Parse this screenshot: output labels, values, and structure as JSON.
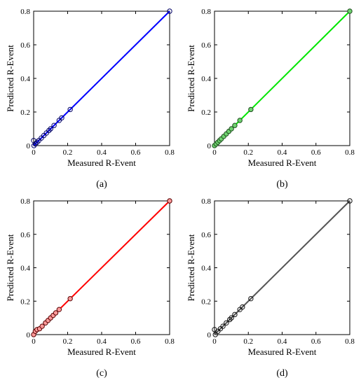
{
  "chart_data": [
    {
      "type": "scatter",
      "panel_label": "(a)",
      "xlabel": "Measured R-Event",
      "ylabel": "Predicted R-Event",
      "xlim": [
        0,
        0.8
      ],
      "ylim": [
        0,
        0.8
      ],
      "x_ticks": [
        "0",
        "0.2",
        "0.4",
        "0.6",
        "0.8"
      ],
      "y_ticks": [
        "0",
        "0.2",
        "0.4",
        "0.6",
        "0.8"
      ],
      "line_color": "#0000ff",
      "marker_color": "#000066",
      "marker_fill": "none",
      "grid": false,
      "fit_line": {
        "x": [
          0,
          0.8
        ],
        "y": [
          0,
          0.8
        ]
      },
      "points": {
        "x": [
          0.0,
          0.002,
          0.01,
          0.02,
          0.03,
          0.045,
          0.06,
          0.075,
          0.09,
          0.1,
          0.12,
          0.15,
          0.165,
          0.215,
          0.8
        ],
        "y": [
          0.03,
          0.0,
          0.01,
          0.02,
          0.03,
          0.045,
          0.06,
          0.075,
          0.09,
          0.1,
          0.12,
          0.15,
          0.165,
          0.215,
          0.8
        ]
      }
    },
    {
      "type": "scatter",
      "panel_label": "(b)",
      "xlabel": "Measured R-Event",
      "ylabel": "Predicted R-Event",
      "xlim": [
        0,
        0.8
      ],
      "ylim": [
        0,
        0.8
      ],
      "x_ticks": [
        "0",
        "0.2",
        "0.4",
        "0.6",
        "0.8"
      ],
      "y_ticks": [
        "0",
        "0.2",
        "0.4",
        "0.6",
        "0.8"
      ],
      "line_color": "#00e600",
      "marker_color": "#1f4d1f",
      "marker_fill": "#6fd26f",
      "grid": false,
      "fit_line": {
        "x": [
          0,
          0.8
        ],
        "y": [
          0,
          0.8
        ]
      },
      "points": {
        "x": [
          0.0,
          0.01,
          0.02,
          0.03,
          0.04,
          0.055,
          0.07,
          0.085,
          0.1,
          0.12,
          0.15,
          0.215,
          0.8
        ],
        "y": [
          0.0,
          0.01,
          0.02,
          0.03,
          0.04,
          0.055,
          0.07,
          0.085,
          0.1,
          0.12,
          0.15,
          0.215,
          0.8
        ]
      }
    },
    {
      "type": "scatter",
      "panel_label": "(c)",
      "xlabel": "Measured R-Event",
      "ylabel": "Predicted R-Event",
      "xlim": [
        0,
        0.8
      ],
      "ylim": [
        0,
        0.8
      ],
      "x_ticks": [
        "0",
        "0.2",
        "0.4",
        "0.6",
        "0.8"
      ],
      "y_ticks": [
        "0",
        "0.2",
        "0.4",
        "0.6",
        "0.8"
      ],
      "line_color": "#ff0000",
      "marker_color": "#550000",
      "marker_fill": "#ff9a9a",
      "grid": false,
      "fit_line": {
        "x": [
          0,
          0.8
        ],
        "y": [
          0,
          0.8
        ]
      },
      "points": {
        "x": [
          0.0,
          0.01,
          0.02,
          0.035,
          0.05,
          0.07,
          0.085,
          0.1,
          0.115,
          0.13,
          0.15,
          0.215,
          0.8
        ],
        "y": [
          0.0,
          0.02,
          0.03,
          0.035,
          0.05,
          0.07,
          0.085,
          0.1,
          0.115,
          0.13,
          0.15,
          0.215,
          0.8
        ]
      }
    },
    {
      "type": "scatter",
      "panel_label": "(d)",
      "xlabel": "Measured R-Event",
      "ylabel": "Predicted R-Event",
      "xlim": [
        0,
        0.8
      ],
      "ylim": [
        0,
        0.8
      ],
      "x_ticks": [
        "0",
        "0.2",
        "0.4",
        "0.6",
        "0.8"
      ],
      "y_ticks": [
        "0",
        "0.2",
        "0.4",
        "0.6",
        "0.8"
      ],
      "line_color": "#555555",
      "marker_color": "#111111",
      "marker_fill": "none",
      "grid": false,
      "fit_line": {
        "x": [
          0,
          0.8
        ],
        "y": [
          0,
          0.8
        ]
      },
      "points": {
        "x": [
          0.0,
          0.005,
          0.02,
          0.035,
          0.05,
          0.07,
          0.09,
          0.1,
          0.12,
          0.15,
          0.165,
          0.215,
          0.8
        ],
        "y": [
          0.03,
          0.0,
          0.02,
          0.035,
          0.05,
          0.07,
          0.09,
          0.1,
          0.12,
          0.15,
          0.165,
          0.215,
          0.8
        ]
      }
    }
  ]
}
